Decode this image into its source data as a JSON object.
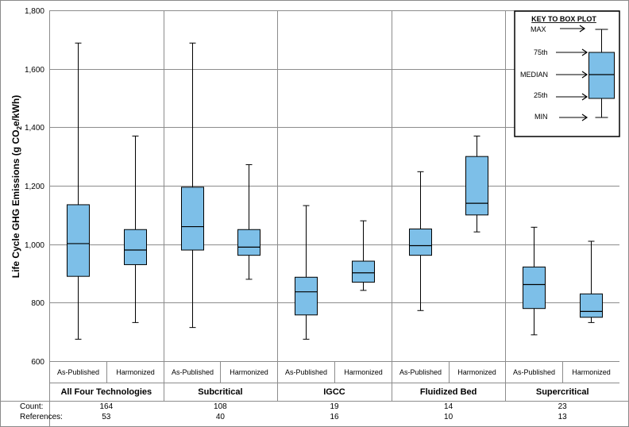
{
  "chart_data": {
    "type": "box",
    "ylabel": "Life Cycle GHG Emissions  (g CO",
    "ylabel_sub": "2",
    "ylabel_tail": "e/kWh)",
    "ylim": [
      600,
      1800
    ],
    "yticks": [
      600,
      800,
      "1,000",
      "1,200",
      "1,400",
      "1,600",
      "1,800"
    ],
    "ytick_values": [
      600,
      800,
      1000,
      1200,
      1400,
      1600,
      1800
    ],
    "box_color": "#7dbfe8",
    "groups": [
      {
        "name": "All Four Technologies",
        "count": "164",
        "references": "53",
        "boxes": [
          {
            "label": "As-Published",
            "min": 675,
            "q1": 890,
            "median": 1002,
            "q3": 1135,
            "max": 1688
          },
          {
            "label": "Harmonized",
            "min": 732,
            "q1": 930,
            "median": 980,
            "q3": 1050,
            "max": 1370
          }
        ]
      },
      {
        "name": "Subcritical",
        "count": "108",
        "references": "40",
        "boxes": [
          {
            "label": "As-Published",
            "min": 715,
            "q1": 980,
            "median": 1060,
            "q3": 1195,
            "max": 1688
          },
          {
            "label": "Harmonized",
            "min": 880,
            "q1": 962,
            "median": 990,
            "q3": 1050,
            "max": 1272
          }
        ]
      },
      {
        "name": "IGCC",
        "count": "19",
        "references": "16",
        "boxes": [
          {
            "label": "As-Published",
            "min": 675,
            "q1": 758,
            "median": 837,
            "q3": 887,
            "max": 1132
          },
          {
            "label": "Harmonized",
            "min": 842,
            "q1": 870,
            "median": 902,
            "q3": 942,
            "max": 1080
          }
        ]
      },
      {
        "name": "Fluidized Bed",
        "count": "14",
        "references": "10",
        "boxes": [
          {
            "label": "As-Published",
            "min": 773,
            "q1": 962,
            "median": 995,
            "q3": 1052,
            "max": 1248
          },
          {
            "label": "Harmonized",
            "min": 1042,
            "q1": 1100,
            "median": 1140,
            "q3": 1300,
            "max": 1370
          }
        ]
      },
      {
        "name": "Supercritical",
        "count": "23",
        "references": "13",
        "boxes": [
          {
            "label": "As-Published",
            "min": 690,
            "q1": 780,
            "median": 862,
            "q3": 922,
            "max": 1058
          },
          {
            "label": "Harmonized",
            "min": 732,
            "q1": 750,
            "median": 770,
            "q3": 830,
            "max": 1010
          }
        ]
      }
    ],
    "footer_labels": {
      "count": "Count:",
      "references": "References:"
    },
    "key": {
      "title": "KEY TO BOX PLOT",
      "labels": [
        "MAX",
        "75th",
        "MEDIAN",
        "25th",
        "MIN"
      ]
    }
  }
}
